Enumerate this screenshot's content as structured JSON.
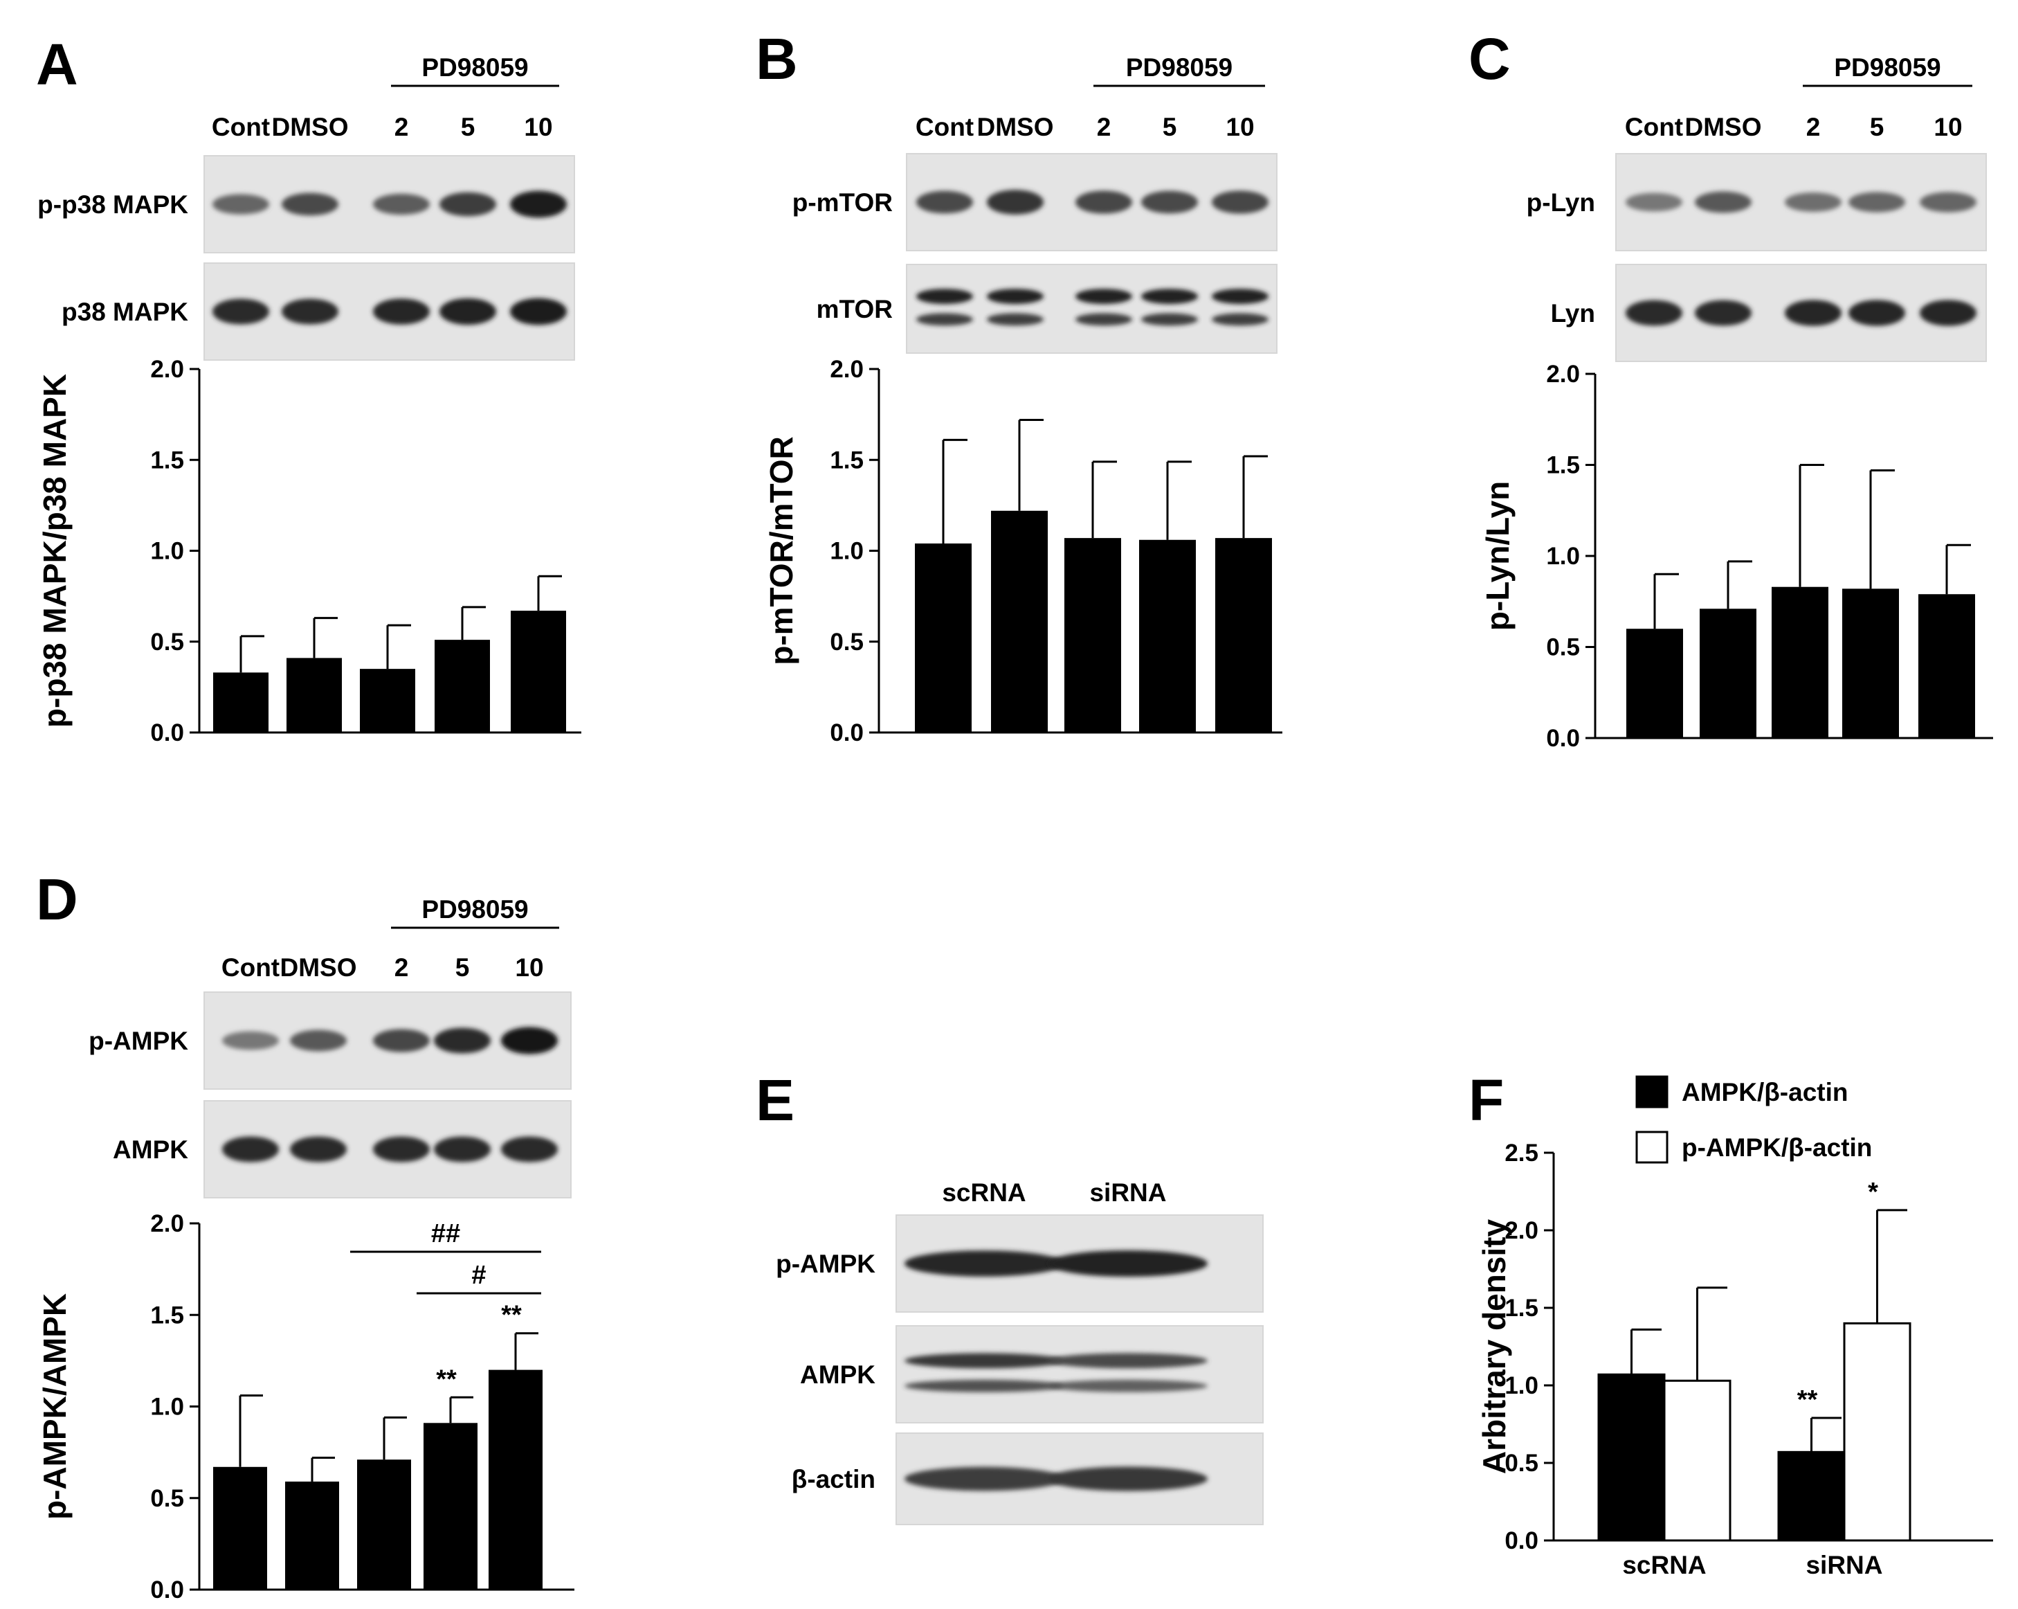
{
  "figure": {
    "panels": [
      "A",
      "B",
      "C",
      "D",
      "E",
      "F"
    ]
  },
  "blots": [
    {
      "panel": "A",
      "treatment_label": "PD98059",
      "lanes": [
        "Cont",
        "DMSO",
        "2",
        "5",
        "10"
      ],
      "rows": [
        {
          "label": "p-p38 MAPK",
          "band_intensity": [
            0.55,
            0.7,
            0.6,
            0.78,
            0.95
          ],
          "double": false
        },
        {
          "label": "p38 MAPK",
          "band_intensity": [
            0.88,
            0.88,
            0.9,
            0.93,
            0.95
          ],
          "double": false
        }
      ]
    },
    {
      "panel": "B",
      "treatment_label": "PD98059",
      "lanes": [
        "Cont",
        "DMSO",
        "2",
        "5",
        "10"
      ],
      "rows": [
        {
          "label": "p-mTOR",
          "band_intensity": [
            0.7,
            0.82,
            0.72,
            0.7,
            0.72
          ],
          "double": false
        },
        {
          "label": "mTOR",
          "band_intensity": [
            0.92,
            0.92,
            0.92,
            0.92,
            0.92
          ],
          "double": true
        }
      ]
    },
    {
      "panel": "C",
      "treatment_label": "PD98059",
      "lanes": [
        "Cont",
        "DMSO",
        "2",
        "5",
        "10"
      ],
      "rows": [
        {
          "label": "p-Lyn",
          "band_intensity": [
            0.45,
            0.62,
            0.5,
            0.55,
            0.55
          ],
          "double": false
        },
        {
          "label": "Lyn",
          "band_intensity": [
            0.88,
            0.88,
            0.9,
            0.9,
            0.9
          ],
          "double": false
        }
      ]
    },
    {
      "panel": "D",
      "treatment_label": "PD98059",
      "lanes": [
        "Cont",
        "DMSO",
        "2",
        "5",
        "10"
      ],
      "rows": [
        {
          "label": "p-AMPK",
          "band_intensity": [
            0.45,
            0.62,
            0.72,
            0.88,
            0.97
          ],
          "double": false
        },
        {
          "label": "AMPK",
          "band_intensity": [
            0.88,
            0.88,
            0.88,
            0.88,
            0.88
          ],
          "double": false
        }
      ]
    },
    {
      "panel": "E",
      "treatment_label": "",
      "lanes": [
        "scRNA",
        "siRNA"
      ],
      "rows": [
        {
          "label": "p-AMPK",
          "band_intensity": [
            0.9,
            0.92
          ],
          "double": false
        },
        {
          "label": "AMPK",
          "band_intensity": [
            0.8,
            0.7
          ],
          "double": true
        },
        {
          "label": "β-actin",
          "band_intensity": [
            0.78,
            0.8
          ],
          "double": false
        }
      ]
    }
  ],
  "chart_data": [
    {
      "panel": "A",
      "type": "bar",
      "categories": [
        "Cont",
        "DMSO",
        "2",
        "5",
        "10"
      ],
      "values": [
        0.33,
        0.41,
        0.35,
        0.51,
        0.67
      ],
      "error": [
        0.2,
        0.22,
        0.24,
        0.18,
        0.19
      ],
      "ylabel": "p-p38 MAPK/p38 MAPK",
      "ylim": [
        0,
        2.0
      ],
      "yticks": [
        "0.0",
        "0.5",
        "1.0",
        "1.5",
        "2.0"
      ],
      "bar_color": "#000000"
    },
    {
      "panel": "B",
      "type": "bar",
      "categories": [
        "Cont",
        "DMSO",
        "2",
        "5",
        "10"
      ],
      "values": [
        1.04,
        1.22,
        1.07,
        1.06,
        1.07
      ],
      "error": [
        0.57,
        0.5,
        0.42,
        0.43,
        0.45
      ],
      "ylabel": "p-mTOR/mTOR",
      "ylim": [
        0,
        2.0
      ],
      "yticks": [
        "0.0",
        "0.5",
        "1.0",
        "1.5",
        "2.0"
      ],
      "bar_color": "#000000"
    },
    {
      "panel": "C",
      "type": "bar",
      "categories": [
        "Cont",
        "DMSO",
        "2",
        "5",
        "10"
      ],
      "values": [
        0.6,
        0.71,
        0.83,
        0.82,
        0.79
      ],
      "error": [
        0.3,
        0.26,
        0.67,
        0.65,
        0.27
      ],
      "ylabel": "p-Lyn/Lyn",
      "ylim": [
        0,
        2.0
      ],
      "yticks": [
        "0.0",
        "0.5",
        "1.0",
        "1.5",
        "2.0"
      ],
      "bar_color": "#000000"
    },
    {
      "panel": "D",
      "type": "bar",
      "categories": [
        "Cont",
        "DMSO",
        "2",
        "5",
        "10"
      ],
      "values": [
        0.67,
        0.59,
        0.71,
        0.91,
        1.2
      ],
      "error": [
        0.39,
        0.13,
        0.23,
        0.14,
        0.2
      ],
      "ylabel": "p-AMPK/AMPK",
      "ylim": [
        0,
        2.0
      ],
      "yticks": [
        "0.0",
        "0.5",
        "1.0",
        "1.5",
        "2.0"
      ],
      "bar_color": "#000000",
      "annotations": [
        {
          "bar_index": 3,
          "text": "**"
        },
        {
          "bar_index": 4,
          "text": "**"
        }
      ],
      "brackets": [
        {
          "from": 2,
          "to": 4,
          "text": "##"
        },
        {
          "from": 3,
          "to": 4,
          "text": "#"
        }
      ]
    },
    {
      "panel": "F",
      "type": "bar",
      "categories": [
        "scRNA",
        "siRNA"
      ],
      "series": [
        {
          "name": "AMPK/β-actin",
          "values": [
            1.07,
            0.57
          ],
          "error": [
            0.29,
            0.22
          ],
          "color": "#000000",
          "annotations": [
            "",
            "**"
          ]
        },
        {
          "name": "p-AMPK/β-actin",
          "values": [
            1.03,
            1.4
          ],
          "error": [
            0.6,
            0.73
          ],
          "color": "#ffffff",
          "annotations": [
            "",
            "*"
          ]
        }
      ],
      "ylabel": "Arbitrary density",
      "ylim": [
        0,
        2.5
      ],
      "yticks": [
        "0.0",
        "0.5",
        "1.0",
        "1.5",
        "2.0",
        "2.5"
      ],
      "legend_position": "top-left"
    }
  ]
}
